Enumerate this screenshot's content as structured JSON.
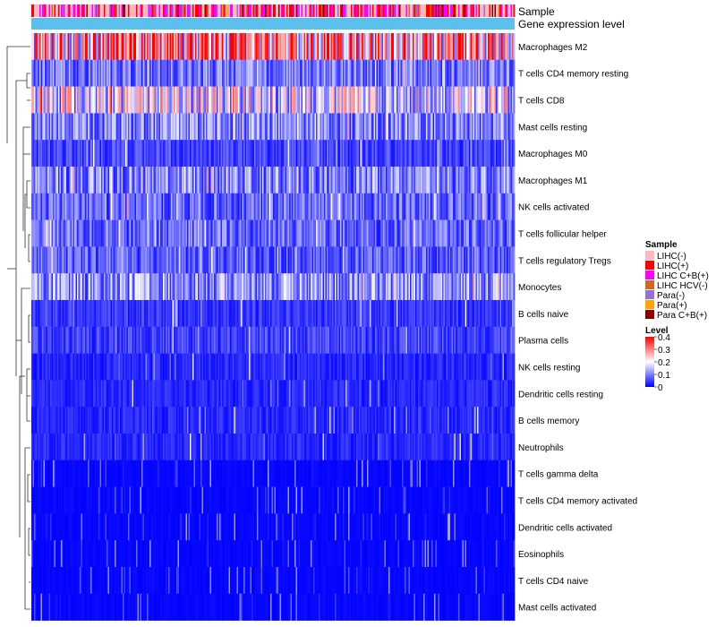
{
  "chart_data": {
    "type": "heatmap",
    "title": "",
    "annotation_tracks": [
      "Sample",
      "Gene expression level"
    ],
    "rows": [
      {
        "label": "Macrophages M2",
        "level": 0.28
      },
      {
        "label": "T cells CD4 memory resting",
        "level": 0.09
      },
      {
        "label": "T cells CD8",
        "level": 0.17
      },
      {
        "label": "Mast cells resting",
        "level": 0.1
      },
      {
        "label": "Macrophages M0",
        "level": 0.05
      },
      {
        "label": "Macrophages M1",
        "level": 0.1
      },
      {
        "label": "NK cells activated",
        "level": 0.08
      },
      {
        "label": "T cells follicular helper",
        "level": 0.08
      },
      {
        "label": "T cells regulatory  Tregs",
        "level": 0.07
      },
      {
        "label": "Monocytes",
        "level": 0.11
      },
      {
        "label": "B cells naive",
        "level": 0.04
      },
      {
        "label": "Plasma cells",
        "level": 0.05
      },
      {
        "label": "NK cells resting",
        "level": 0.03
      },
      {
        "label": "Dendritic cells resting",
        "level": 0.03
      },
      {
        "label": "B cells memory",
        "level": 0.03
      },
      {
        "label": "Neutrophils",
        "level": 0.03
      },
      {
        "label": "T cells gamma delta",
        "level": 0.01
      },
      {
        "label": "T cells CD4 memory activated",
        "level": 0.01
      },
      {
        "label": "Dendritic cells activated",
        "level": 0.01
      },
      {
        "label": "Eosinophils",
        "level": 0.01
      },
      {
        "label": "T cells CD4 naive",
        "level": 0.01
      },
      {
        "label": "Mast cells activated",
        "level": 0.01
      }
    ],
    "legend_sample": {
      "title": "Sample",
      "entries": [
        {
          "label": "LIHC(-)",
          "color": "#FFB6C1"
        },
        {
          "label": "LIHC(+)",
          "color": "#FF0000"
        },
        {
          "label": "LIHC C+B(+)",
          "color": "#FF00FF"
        },
        {
          "label": "LIHC HCV(-)",
          "color": "#D2691E"
        },
        {
          "label": "Para(-)",
          "color": "#9370DB"
        },
        {
          "label": "Para(+)",
          "color": "#FFA500"
        },
        {
          "label": "Para C+B(+)",
          "color": "#8B0000"
        }
      ]
    },
    "legend_level": {
      "title": "Level",
      "ticks": [
        "0.4",
        "0.3",
        "0.2",
        "0.1",
        "0"
      ],
      "range": [
        0,
        0.4
      ],
      "colors": {
        "low": "#0000FF",
        "mid": "#FFFFFF",
        "high": "#FF0000"
      }
    },
    "gene_expression_color": "#5BC0EB"
  }
}
